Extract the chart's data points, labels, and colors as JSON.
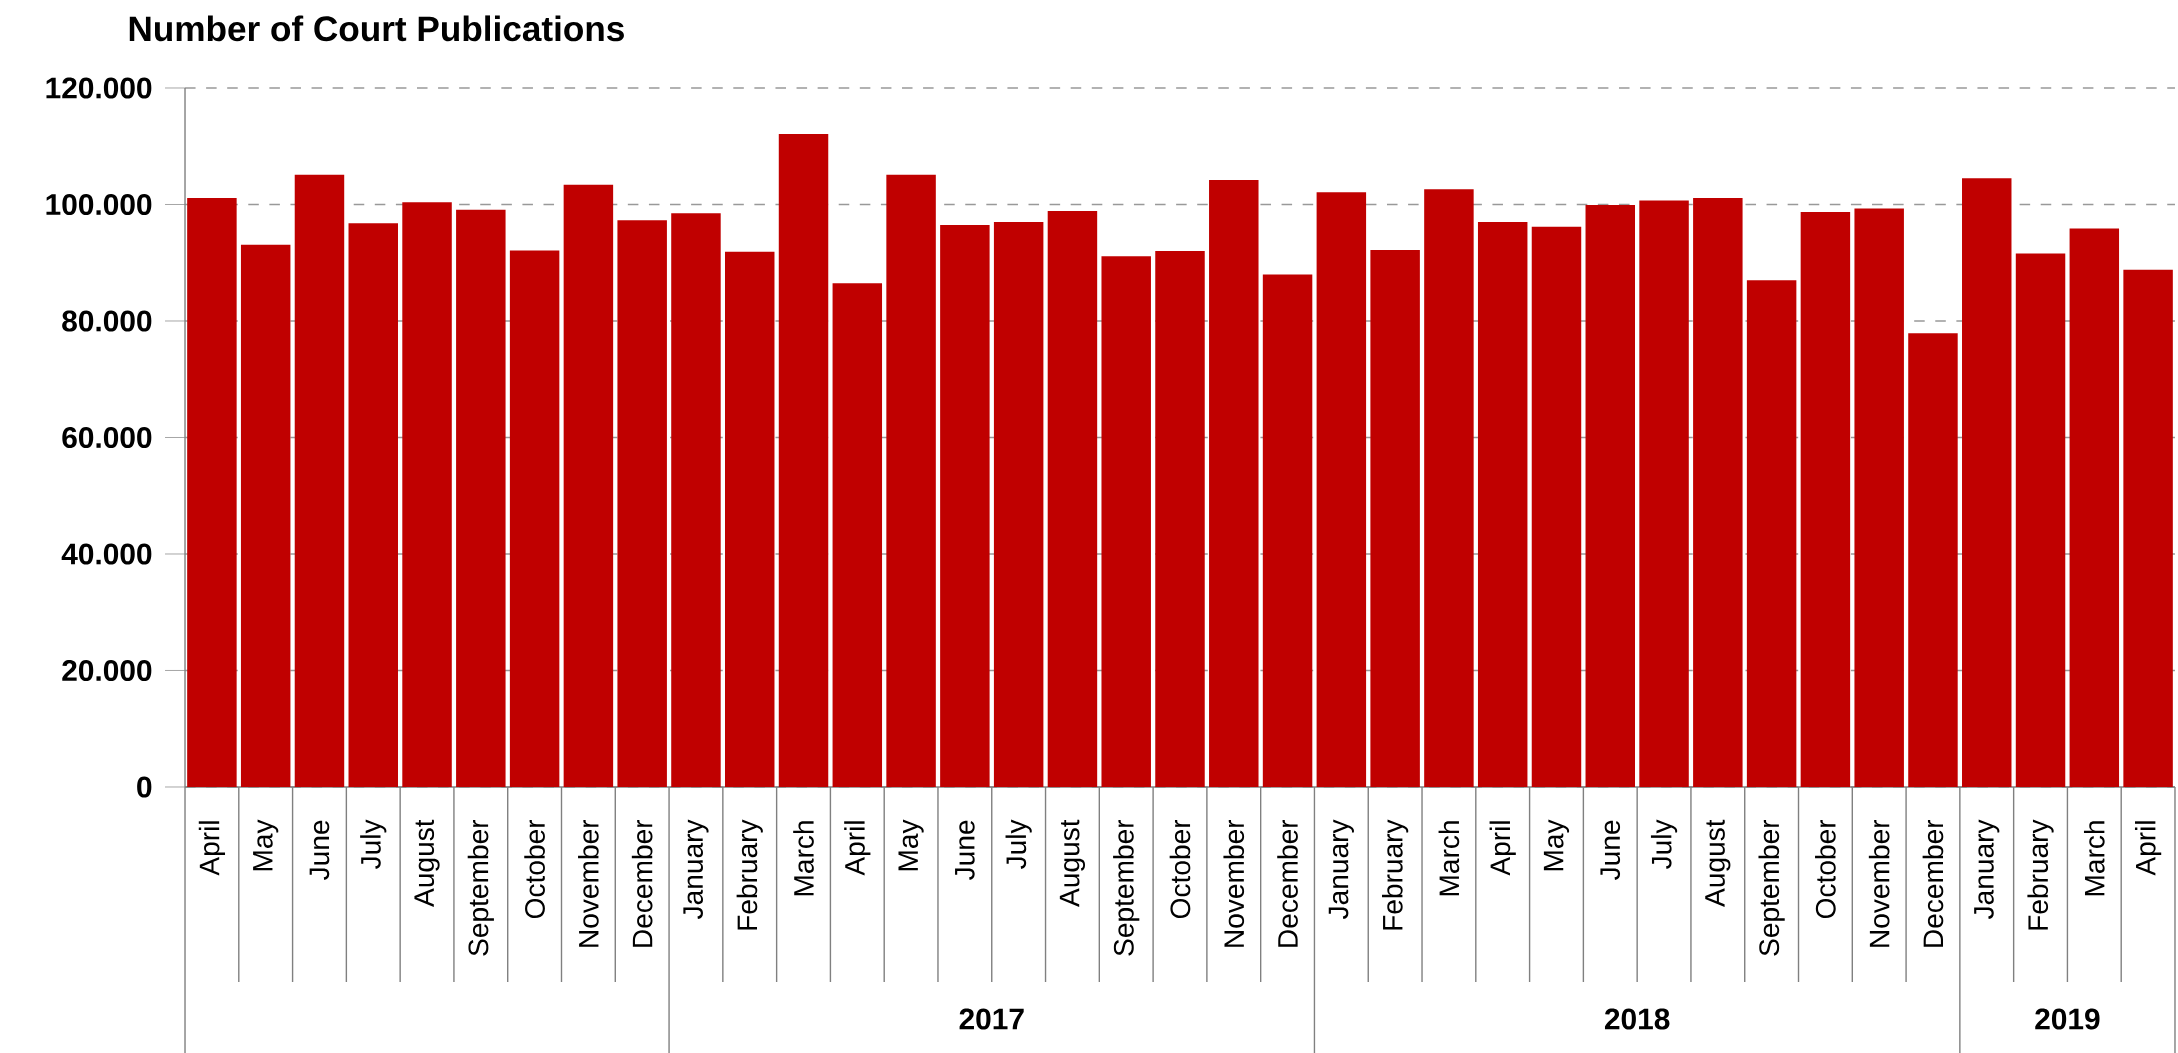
{
  "chart_data": {
    "type": "bar",
    "title": "Number of Court Publications",
    "categories": [
      "April",
      "May",
      "June",
      "July",
      "August",
      "September",
      "October",
      "November",
      "December",
      "January",
      "February",
      "March",
      "April",
      "May",
      "June",
      "July",
      "August",
      "September",
      "October",
      "November",
      "December",
      "January",
      "February",
      "March",
      "April",
      "May",
      "June",
      "July",
      "August",
      "September",
      "October",
      "November",
      "December",
      "January",
      "February",
      "March",
      "April"
    ],
    "values": [
      101100,
      93100,
      105100,
      96800,
      100400,
      99100,
      92100,
      103400,
      97300,
      98500,
      91900,
      112100,
      86500,
      105100,
      96500,
      97000,
      98900,
      91100,
      92000,
      104200,
      88000,
      102100,
      92200,
      102600,
      97000,
      96200,
      99900,
      100700,
      101100,
      87000,
      98700,
      99300,
      77900,
      104500,
      91600,
      95900,
      88800
    ],
    "color": "#c00000",
    "ylim": [
      0,
      120000
    ],
    "yticks": [
      0,
      {
        "value": 20000,
        "label": "20.000"
      },
      {
        "value": 40000,
        "label": "40.000"
      },
      {
        "value": 60000,
        "label": "60.000"
      },
      {
        "value": 80000,
        "label": "80.000"
      },
      {
        "value": 100000,
        "label": "100.000"
      },
      {
        "value": 120000,
        "label": "120.000"
      }
    ],
    "grid": "y",
    "annotations": [
      "2017",
      "2018",
      "2019"
    ]
  }
}
